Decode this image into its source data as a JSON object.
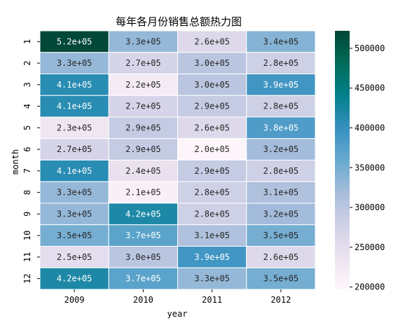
{
  "chart_data": {
    "type": "heatmap",
    "title": "每年各月份销售总额热力图",
    "xlabel": "year",
    "ylabel": "month",
    "x_categories": [
      "2009",
      "2010",
      "2011",
      "2012"
    ],
    "y_categories": [
      "1",
      "2",
      "3",
      "4",
      "5",
      "6",
      "7",
      "8",
      "9",
      "10",
      "11",
      "12"
    ],
    "values": [
      [
        520000,
        330000,
        260000,
        340000
      ],
      [
        330000,
        270000,
        300000,
        280000
      ],
      [
        410000,
        220000,
        300000,
        390000
      ],
      [
        410000,
        270000,
        290000,
        280000
      ],
      [
        230000,
        290000,
        260000,
        380000
      ],
      [
        270000,
        290000,
        200000,
        320000
      ],
      [
        410000,
        240000,
        290000,
        280000
      ],
      [
        330000,
        210000,
        280000,
        310000
      ],
      [
        330000,
        420000,
        280000,
        320000
      ],
      [
        350000,
        370000,
        310000,
        350000
      ],
      [
        250000,
        300000,
        390000,
        260000
      ],
      [
        420000,
        370000,
        330000,
        350000
      ]
    ],
    "annotations": [
      [
        "5.2e+05",
        "3.3e+05",
        "2.6e+05",
        "3.4e+05"
      ],
      [
        "3.3e+05",
        "2.7e+05",
        "3.0e+05",
        "2.8e+05"
      ],
      [
        "4.1e+05",
        "2.2e+05",
        "3.0e+05",
        "3.9e+05"
      ],
      [
        "4.1e+05",
        "2.7e+05",
        "2.9e+05",
        "2.8e+05"
      ],
      [
        "2.3e+05",
        "2.9e+05",
        "2.6e+05",
        "3.8e+05"
      ],
      [
        "2.7e+05",
        "2.9e+05",
        "2.0e+05",
        "3.2e+05"
      ],
      [
        "4.1e+05",
        "2.4e+05",
        "2.9e+05",
        "2.8e+05"
      ],
      [
        "3.3e+05",
        "2.1e+05",
        "2.8e+05",
        "3.1e+05"
      ],
      [
        "3.3e+05",
        "4.2e+05",
        "2.8e+05",
        "3.2e+05"
      ],
      [
        "3.5e+05",
        "3.7e+05",
        "3.1e+05",
        "3.5e+05"
      ],
      [
        "2.5e+05",
        "3.0e+05",
        "3.9e+05",
        "2.6e+05"
      ],
      [
        "4.2e+05",
        "3.7e+05",
        "3.3e+05",
        "3.5e+05"
      ]
    ],
    "colorbar": {
      "min": 197000,
      "max": 522000,
      "ticks": [
        200000,
        250000,
        300000,
        350000,
        400000,
        450000,
        500000
      ],
      "tick_labels": [
        "200000",
        "250000",
        "300000",
        "350000",
        "400000",
        "450000",
        "500000"
      ]
    },
    "colormap": "PuBuGn",
    "colormap_stops": [
      "#fff7fb",
      "#ece2f0",
      "#d0d1e6",
      "#a6bddb",
      "#67a9cf",
      "#3690c0",
      "#02818a",
      "#016c59",
      "#014636"
    ],
    "grid": false,
    "legend": "colorbar-right"
  }
}
